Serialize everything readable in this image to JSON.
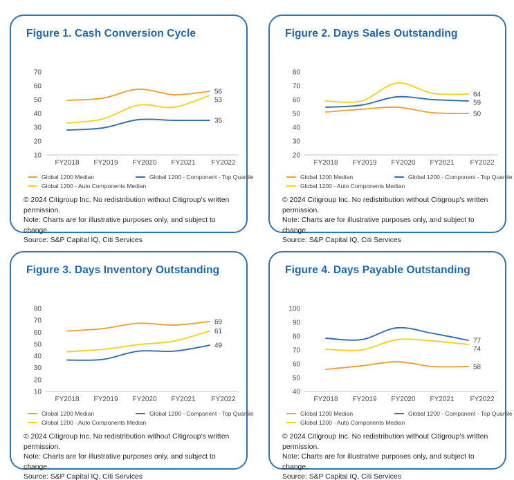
{
  "colors": {
    "card_border": "#2E74B5",
    "title_blue": "#1C66B3",
    "orange": "#F0A132",
    "blue": "#2E6EB4",
    "yellow": "#FBD116",
    "axis_text": "#4A4A4A",
    "baseline": "#D8D8D8"
  },
  "footer": [
    "© 2024 Citigroup Inc. No redistribution without Citigroup's written permission.",
    "Note: Charts are for illustrative purposes only, and subject to change.",
    "Source: S&P Capital IQ, Citi Services"
  ],
  "chart_data": [
    {
      "type": "line",
      "title": "Figure 1. Cash Conversion Cycle",
      "categories": [
        "FY2018",
        "FY2019",
        "FY2020",
        "FY2021",
        "FY2022"
      ],
      "ylim": [
        10,
        70
      ],
      "yticks": [
        70,
        60,
        50,
        40,
        30,
        20,
        10
      ],
      "grid": "baseline-only",
      "legend_position": "bottom",
      "series": [
        {
          "name": "Global 1200 Median",
          "color": "#F0A132",
          "values": [
            49.5,
            51,
            57.5,
            53.5,
            56
          ],
          "end_label": "56"
        },
        {
          "name": "Global 1200 - Component - Top Quartile",
          "color": "#2E6EB4",
          "values": [
            28,
            29.5,
            35.5,
            35,
            35
          ],
          "end_label": "35"
        },
        {
          "name": "Global 1200 - Auto Components Median",
          "color": "#FBD116",
          "values": [
            33,
            36,
            46,
            44.5,
            53
          ],
          "end_label": "53"
        }
      ]
    },
    {
      "type": "line",
      "title": "Figure 2. Days Sales Outstanding",
      "categories": [
        "FY2018",
        "FY2019",
        "FY2020",
        "FY2021",
        "FY2022"
      ],
      "ylim": [
        20,
        80
      ],
      "yticks": [
        80,
        70,
        60,
        50,
        40,
        30,
        20
      ],
      "grid": "baseline-only",
      "legend_position": "bottom",
      "series": [
        {
          "name": "Global 1200 Median",
          "color": "#F0A132",
          "values": [
            51,
            53,
            54.5,
            50.5,
            50
          ],
          "end_label": "50"
        },
        {
          "name": "Global 1200 - Component - Top Quartile",
          "color": "#2E6EB4",
          "values": [
            54.5,
            56,
            62,
            60,
            59
          ],
          "end_label": "59"
        },
        {
          "name": "Global 1200 - Auto Components Median",
          "color": "#FBD116",
          "values": [
            59,
            59,
            72,
            64.5,
            64
          ],
          "end_label": "64"
        }
      ]
    },
    {
      "type": "line",
      "title": "Figure 3. Days Inventory Outstanding",
      "categories": [
        "FY2018",
        "FY2019",
        "FY2020",
        "FY2021",
        "FY2022"
      ],
      "ylim": [
        10,
        80
      ],
      "yticks": [
        80,
        70,
        60,
        50,
        40,
        30,
        20,
        10
      ],
      "grid": "baseline-only",
      "legend_position": "bottom",
      "series": [
        {
          "name": "Global 1200 Median",
          "color": "#F0A132",
          "values": [
            61,
            63,
            67.5,
            66,
            69
          ],
          "end_label": "69"
        },
        {
          "name": "Global 1200 - Component - Top Quartile",
          "color": "#2E6EB4",
          "values": [
            36.5,
            37,
            44,
            44,
            49
          ],
          "end_label": "49"
        },
        {
          "name": "Global 1200 - Auto Components Median",
          "color": "#FBD116",
          "values": [
            43.5,
            45.5,
            49.5,
            52.5,
            61
          ],
          "end_label": "61"
        }
      ]
    },
    {
      "type": "line",
      "title": "Figure 4. Days Payable Outstanding",
      "categories": [
        "FY2018",
        "FY2019",
        "FY2020",
        "FY2021",
        "FY2022"
      ],
      "ylim": [
        40,
        100
      ],
      "yticks": [
        100,
        90,
        80,
        70,
        60,
        50,
        40
      ],
      "grid": "baseline-only",
      "legend_position": "bottom",
      "series": [
        {
          "name": "Global 1200 Median",
          "color": "#F0A132",
          "values": [
            56,
            58.5,
            61.5,
            58,
            58
          ],
          "end_label": "58"
        },
        {
          "name": "Global 1200 - Component - Top Quartile",
          "color": "#2E6EB4",
          "values": [
            78.5,
            77.5,
            86,
            82,
            77
          ],
          "end_label": "77"
        },
        {
          "name": "Global 1200 - Auto Components Median",
          "color": "#FBD116",
          "values": [
            70.5,
            70,
            77.5,
            76.5,
            74
          ],
          "end_label": "74"
        }
      ]
    }
  ]
}
